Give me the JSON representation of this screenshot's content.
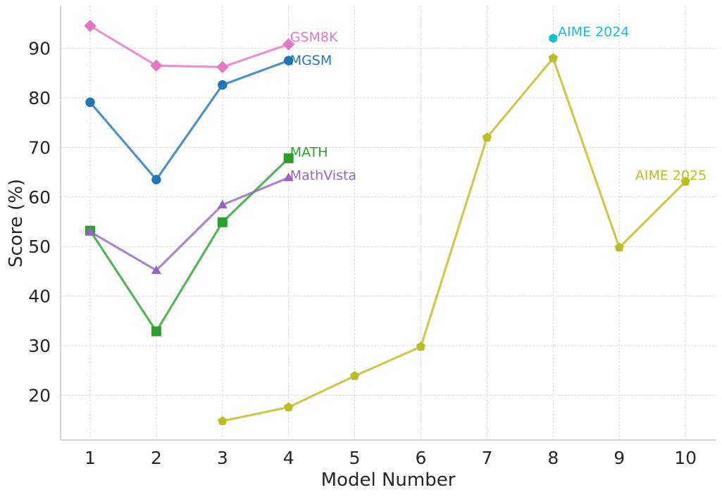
{
  "chart_data": {
    "type": "line",
    "title": "",
    "xlabel": "Model Number",
    "ylabel": "Score (%)",
    "xlim": [
      0.55,
      10.45
    ],
    "ylim": [
      10.7,
      99
    ],
    "grid": true,
    "x_ticks": [
      1,
      2,
      3,
      4,
      5,
      6,
      7,
      8,
      9,
      10
    ],
    "y_ticks": [
      20,
      30,
      40,
      50,
      60,
      70,
      80,
      90
    ],
    "x_tick_labels": [
      "1",
      "2",
      "3",
      "4",
      "5",
      "6",
      "7",
      "8",
      "9",
      "10"
    ],
    "y_tick_labels": [
      "20",
      "30",
      "40",
      "50",
      "60",
      "70",
      "80",
      "90"
    ],
    "series": [
      {
        "name": "GSM8K",
        "color": "#e377c2",
        "marker": "diamond",
        "x": [
          1,
          2,
          3,
          4
        ],
        "values": [
          94.5,
          86.5,
          86.2,
          90.8
        ],
        "label": "GSM8K",
        "label_at": [
          4,
          92.2
        ]
      },
      {
        "name": "MGSM",
        "color": "#1f77b4",
        "marker": "circle",
        "x": [
          1,
          2,
          3,
          4
        ],
        "values": [
          79.1,
          63.5,
          82.6,
          87.5
        ],
        "label": "MGSM",
        "label_at": [
          4,
          87.5
        ]
      },
      {
        "name": "MATH",
        "color": "#2ca02c",
        "marker": "square",
        "x": [
          1,
          2,
          3,
          4
        ],
        "values": [
          53.2,
          32.9,
          54.9,
          67.8
        ],
        "label": "MATH",
        "label_at": [
          4,
          69.0
        ]
      },
      {
        "name": "MathVista",
        "color": "#9467bd",
        "marker": "triangle",
        "x": [
          1,
          2,
          3,
          4
        ],
        "values": [
          53.0,
          45.2,
          58.4,
          63.9
        ],
        "label": "MathVista",
        "label_at": [
          4,
          64.3
        ]
      },
      {
        "name": "AIME 2025",
        "color": "#bcbd22",
        "marker": "pentagon",
        "x": [
          3,
          4,
          5,
          6,
          7,
          8,
          9,
          10
        ],
        "values": [
          14.8,
          17.6,
          23.9,
          29.8,
          72.0,
          88.0,
          49.8,
          63.1
        ],
        "label": "AIME 2025",
        "label_at": [
          9.22,
          64.3
        ]
      },
      {
        "name": "AIME 2024",
        "color": "#17becf",
        "marker": "hexagon",
        "x": [
          8
        ],
        "values": [
          92.0
        ],
        "label": "AIME 2024",
        "label_at": [
          8.05,
          93.3
        ]
      }
    ]
  }
}
